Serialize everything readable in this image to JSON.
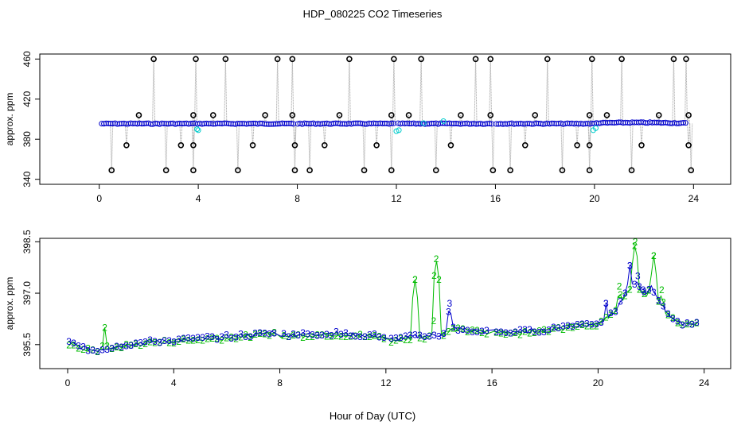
{
  "chart_data": {
    "type": "scatter",
    "title": "HDP_080225  CO2 Timeseries",
    "xlabel": "Hour of Day (UTC)",
    "colors": {
      "axis": "#000000",
      "spike": "#000000",
      "mean": "#0000cc",
      "alt": "#00cccc",
      "series2": "#00bb00",
      "series3": "#0000cc",
      "connector": "#999999"
    },
    "panels": [
      {
        "name": "top",
        "ylabel": "approx. ppm",
        "xlim": [
          -2.4,
          25.5
        ],
        "ylim": [
          335,
          465
        ],
        "xticks": [
          0,
          4,
          8,
          12,
          16,
          20,
          24
        ],
        "xtick_labels": [
          "0",
          "4",
          "8",
          "12",
          "16",
          "20",
          "24"
        ],
        "yticks": [
          340,
          380,
          420,
          460
        ],
        "ytick_labels": [
          "340",
          "380",
          "420",
          "460"
        ],
        "baseline": 395.5,
        "spikes_high": [
          2.2,
          3.9,
          5.1,
          7.2,
          7.8,
          10.1,
          11.9,
          13.0,
          15.2,
          15.8,
          18.1,
          19.9,
          21.1,
          23.2,
          23.7
        ],
        "spikes_404": [
          1.6,
          3.8,
          4.6,
          6.7,
          7.8,
          9.7,
          11.8,
          12.5,
          14.6,
          15.8,
          17.6,
          19.8,
          20.5,
          22.6,
          23.8
        ],
        "spikes_374": [
          1.1,
          3.3,
          3.8,
          6.2,
          7.9,
          9.1,
          11.2,
          14.2,
          17.2,
          19.3,
          19.8,
          21.9,
          23.8
        ],
        "spikes_349": [
          0.5,
          2.7,
          3.8,
          5.6,
          7.9,
          8.5,
          10.7,
          11.8,
          13.6,
          15.9,
          16.6,
          18.7,
          19.8,
          21.5,
          23.9
        ]
      },
      {
        "name": "bottom",
        "ylabel": "approx. ppm",
        "xlim": [
          -1.05,
          25.0
        ],
        "ylim": [
          394.8,
          398.6
        ],
        "xticks": [
          0,
          4,
          8,
          12,
          16,
          20,
          24
        ],
        "xtick_labels": [
          "0",
          "4",
          "8",
          "12",
          "16",
          "20",
          "24"
        ],
        "yticks": [
          395.5,
          397.0,
          398.5
        ],
        "ytick_labels": [
          "395.5",
          "397.0",
          "398.5"
        ],
        "series": [
          {
            "name": "2",
            "marker": "2",
            "color": "#00bb00"
          },
          {
            "name": "3",
            "marker": "3",
            "color": "#0000cc"
          }
        ],
        "trend": [
          [
            0,
            395.55
          ],
          [
            0.5,
            395.4
          ],
          [
            1,
            395.3
          ],
          [
            2,
            395.45
          ],
          [
            3,
            395.55
          ],
          [
            4,
            395.6
          ],
          [
            5,
            395.65
          ],
          [
            6,
            395.7
          ],
          [
            7,
            395.75
          ],
          [
            7.8,
            395.85
          ],
          [
            8,
            395.75
          ],
          [
            10,
            395.8
          ],
          [
            11,
            395.75
          ],
          [
            11.9,
            395.72
          ],
          [
            12,
            395.6
          ],
          [
            13,
            395.7
          ],
          [
            14,
            395.75
          ],
          [
            14.5,
            395.95
          ],
          [
            15,
            395.9
          ],
          [
            15.7,
            395.85
          ],
          [
            16,
            395.85
          ],
          [
            17,
            395.85
          ],
          [
            18,
            395.9
          ],
          [
            19,
            396.05
          ],
          [
            20,
            396.1
          ],
          [
            20.6,
            396.4
          ],
          [
            21,
            396.9
          ],
          [
            21.4,
            397.3
          ],
          [
            21.8,
            396.9
          ],
          [
            22,
            397.15
          ],
          [
            22.5,
            396.5
          ],
          [
            23,
            396.1
          ],
          [
            23.7,
            396.1
          ]
        ],
        "peaks_2": [
          [
            1.4,
            396.0
          ],
          [
            13.1,
            397.4
          ],
          [
            13.9,
            398.0
          ],
          [
            13.8,
            396.2
          ],
          [
            21.4,
            398.5
          ],
          [
            22.1,
            398.1
          ],
          [
            20.8,
            397.2
          ],
          [
            22.4,
            397.1
          ]
        ],
        "peaks_3": [
          [
            14.4,
            396.7
          ],
          [
            21.2,
            397.8
          ],
          [
            21.5,
            397.5
          ],
          [
            20.3,
            396.7
          ],
          [
            21.7,
            397.1
          ]
        ]
      }
    ]
  }
}
